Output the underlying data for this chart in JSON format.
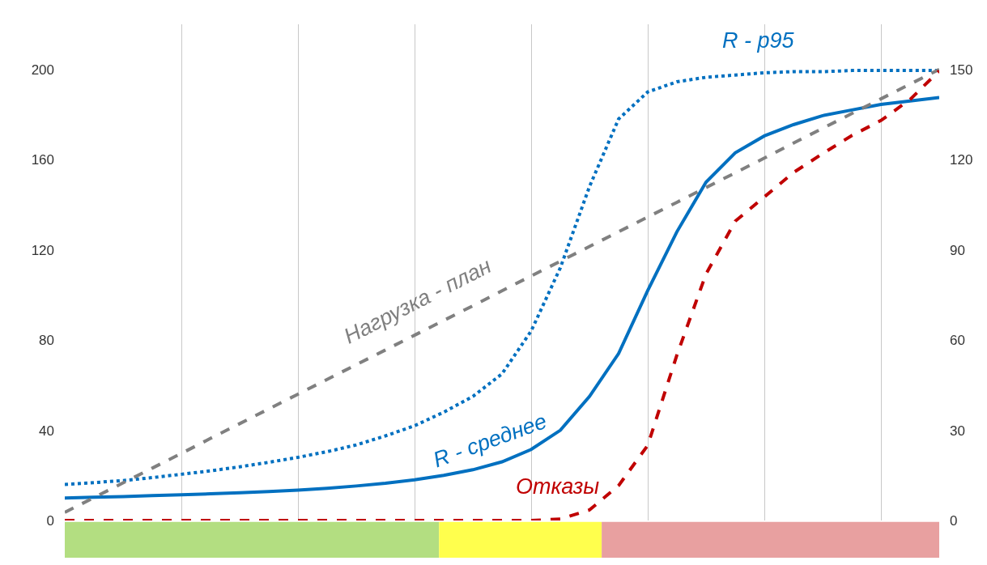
{
  "chart_data": {
    "type": "line",
    "categories": [
      null,
      null,
      null,
      null,
      null,
      null,
      null,
      null,
      null,
      null,
      null,
      null,
      null,
      null,
      null,
      null,
      null,
      null,
      null,
      null,
      null,
      null,
      null,
      null,
      null,
      null,
      null,
      null,
      null,
      null,
      null
    ],
    "series": [
      {
        "name": "R - p95",
        "color": "#0070c0",
        "line_style": "dotted",
        "values": [
          16,
          16.8,
          17.7,
          19,
          20.5,
          22,
          23.8,
          25.8,
          28,
          30.5,
          33.5,
          37.5,
          42,
          48,
          55,
          65,
          84,
          112,
          148,
          178,
          190,
          194.5,
          196.5,
          197.5,
          198.5,
          199,
          199,
          199.5,
          199.5,
          199.5,
          199.5
        ]
      },
      {
        "name": "R - среднее",
        "color": "#0070c0",
        "line_style": "solid",
        "values": [
          10,
          10.3,
          10.6,
          11,
          11.4,
          11.8,
          12.3,
          12.8,
          13.5,
          14.3,
          15.3,
          16.5,
          18,
          20,
          22.5,
          26,
          31.5,
          40,
          55,
          74,
          102,
          128,
          150,
          163,
          170.5,
          175.5,
          179.5,
          182,
          184.5,
          186,
          187.5
        ]
      },
      {
        "name": "Нагрузка - план",
        "color": "#808080",
        "line_style": "dashed",
        "axis": "y2",
        "values": [
          2.7,
          7.6,
          12.5,
          17.4,
          22.3,
          27.3,
          32.2,
          37.1,
          42,
          46.9,
          51.8,
          56.7,
          61.6,
          66.5,
          71.4,
          76.4,
          81.3,
          86.2,
          91.1,
          96,
          100.9,
          105.8,
          110.7,
          115.6,
          120.5,
          125.5,
          130.4,
          135.3,
          140.2,
          145.1,
          150
        ]
      },
      {
        "name": "Отказы",
        "color": "#c00000",
        "line_style": "dashed",
        "axis": "y2",
        "values": [
          0,
          0,
          0,
          0,
          0,
          0,
          0,
          0,
          0,
          0,
          0,
          0,
          0,
          0,
          0,
          0,
          0,
          0.5,
          3.5,
          11.6,
          25,
          55,
          82,
          99.5,
          107.6,
          115.7,
          122,
          128,
          133,
          140,
          149.5
        ]
      }
    ],
    "ylim": [
      0,
      220
    ],
    "yticks": [
      0,
      40,
      80,
      120,
      160,
      200
    ],
    "y2lim": [
      0,
      165
    ],
    "y2ticks": [
      0,
      30,
      60,
      90,
      120,
      150
    ],
    "grid": "x",
    "legend": false,
    "marker": "none",
    "tick_labels": "y"
  }
}
